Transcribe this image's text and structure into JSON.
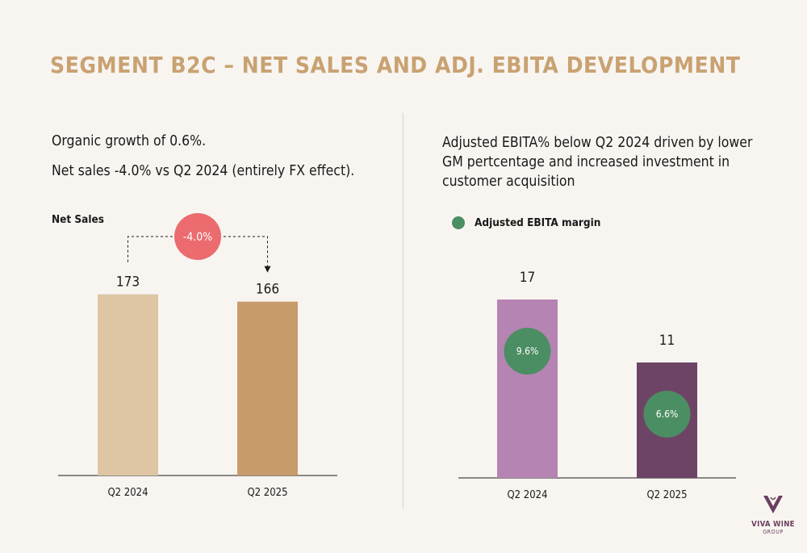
{
  "title": "SEGMENT B2C – NET SALES AND ADJ. EBITA DEVELOPMENT",
  "left_bullets": [
    "Organic growth of 0.6%.",
    "Net sales -4.0% vs Q2 2024 (entirely FX effect)."
  ],
  "right_text": "Adjusted EBITA% below Q2 2024  driven by lower GM pertcentage and increased investment in customer acquisition",
  "logo": {
    "name": "VIVA WINE",
    "sub": "GROUP",
    "color": "#6b3f5e"
  },
  "chart_data": [
    {
      "type": "bar",
      "title": "Net Sales",
      "categories": [
        "Q2 2024",
        "Q2 2025"
      ],
      "values": [
        173,
        166
      ],
      "value_labels": [
        "173",
        "166"
      ],
      "colors": [
        "#dec5a4",
        "#c89b6a"
      ],
      "change_label": "-4.0%",
      "change_color": "#eb6b6e",
      "ylim": [
        0,
        185
      ]
    },
    {
      "type": "bar",
      "categories": [
        "Q2 2024",
        "Q2 2025"
      ],
      "values": [
        17,
        11
      ],
      "value_labels": [
        "17",
        "11"
      ],
      "colors": [
        "#b584b2",
        "#6e4466"
      ],
      "legend": "Adjusted EBITA margin",
      "legend_color": "#4b8e63",
      "margins": [
        "9.6%",
        "6.6%"
      ],
      "ylim": [
        0,
        20
      ]
    }
  ]
}
